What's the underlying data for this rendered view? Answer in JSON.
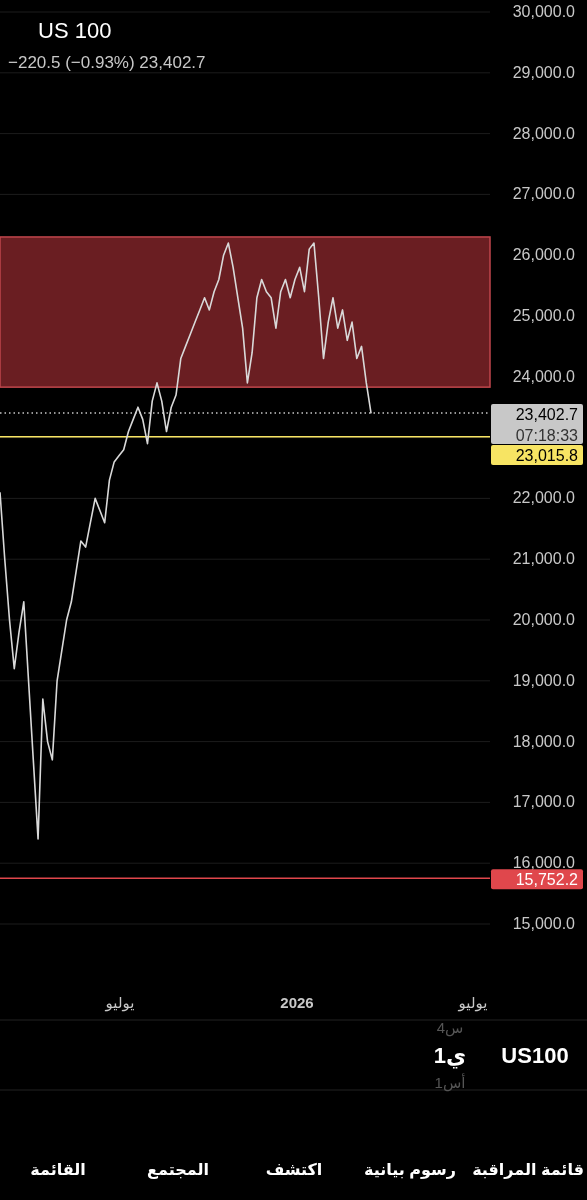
{
  "chart_data": {
    "type": "line",
    "title": "US 100",
    "subtitle": "−220.5 (−0.93%)  23,402.7",
    "categories": [
      null,
      null,
      null,
      null,
      null,
      null,
      null,
      null,
      null,
      null,
      null,
      null,
      null,
      null,
      null,
      null,
      null,
      null,
      null,
      null,
      null,
      null,
      null,
      null,
      null,
      null,
      null,
      null,
      null,
      null,
      null,
      null,
      null,
      null,
      null,
      null,
      null,
      null,
      null,
      null,
      null,
      null,
      null,
      null,
      null,
      null,
      null,
      null,
      null,
      null,
      null,
      null,
      null,
      null,
      null,
      null,
      null,
      null,
      null,
      null,
      null,
      null,
      null,
      null,
      null,
      null,
      null,
      null,
      null,
      null,
      null,
      null,
      null,
      null,
      null,
      null,
      null,
      null,
      null,
      null,
      null,
      null,
      null,
      null,
      null,
      null,
      null,
      null,
      null,
      null,
      null,
      null,
      null,
      null,
      null,
      null,
      null,
      null,
      null,
      null,
      null,
      null,
      null,
      null
    ],
    "series": [
      {
        "color": "#d9d9d9",
        "values": [
          22100,
          21000,
          20000,
          19200,
          19800,
          20300,
          19000,
          17700,
          16400,
          18700,
          18000,
          17700,
          19000,
          19500,
          20000,
          20300,
          20800,
          21300,
          21200,
          21600,
          22000,
          21800,
          21600,
          22300,
          22600,
          22700,
          22800,
          23100,
          23300,
          23500,
          23300,
          22900,
          23600,
          23900,
          23600,
          23100,
          23500,
          23700,
          24300,
          24500,
          24700,
          24900,
          25100,
          25300,
          25100,
          25400,
          25600,
          26000,
          26200,
          25800,
          25300,
          24800,
          23900,
          24400,
          25300,
          25600,
          25400,
          25300,
          24800,
          25400,
          25600,
          25300,
          25600,
          25800,
          25400,
          26100,
          26200,
          25300,
          24300,
          24900,
          25300,
          24800,
          25100,
          24600,
          24900,
          24300,
          24500,
          23900,
          23400,
          null,
          null,
          null,
          null,
          null,
          null,
          null,
          null,
          null,
          null,
          null,
          null,
          null,
          null,
          null,
          null,
          null,
          null,
          null,
          null,
          null,
          null,
          null,
          null,
          null
        ]
      }
    ],
    "ylim": [
      15000,
      30000
    ],
    "yticks": [
      {
        "value": 15000,
        "label": "15,000.0"
      },
      {
        "value": 16000,
        "label": "16,000.0"
      },
      {
        "value": 17000,
        "label": "17,000.0"
      },
      {
        "value": 18000,
        "label": "18,000.0"
      },
      {
        "value": 19000,
        "label": "19,000.0"
      },
      {
        "value": 20000,
        "label": "20,000.0"
      },
      {
        "value": 21000,
        "label": "21,000.0"
      },
      {
        "value": 22000,
        "label": "22,000.0"
      },
      {
        "value": 23000,
        "label": null
      },
      {
        "value": 24000,
        "label": "24,000.0"
      },
      {
        "value": 25000,
        "label": "25,000.0"
      },
      {
        "value": 26000,
        "label": "26,000.0"
      },
      {
        "value": 27000,
        "label": "27,000.0"
      },
      {
        "value": 28000,
        "label": "28,000.0"
      },
      {
        "value": 29000,
        "label": "29,000.0"
      },
      {
        "value": 30000,
        "label": "30,000.0"
      }
    ],
    "grid": "y",
    "bands": [
      {
        "axis": "y",
        "from": 23830,
        "to": 26300,
        "color": "#6a1e22"
      }
    ],
    "ref_lines": [
      {
        "axis": "y",
        "value": 23402.7,
        "label": "23,402.7",
        "color": "#c8c8c8",
        "line_style": "dotted"
      },
      {
        "axis": "y",
        "value": 23015.8,
        "label": "23,015.8",
        "color": "#f7e463",
        "line_style": "solid"
      },
      {
        "axis": "y",
        "value": 15752.2,
        "label": "15,752.2",
        "color": "#e0474c",
        "line_style": "solid"
      }
    ],
    "annotations": [
      "يوليو",
      "2026",
      "يوليو",
      "07:18:33",
      "US100",
      "1ي",
      "4س",
      "1أس",
      "قائمة المراقبة",
      "رسوم بيانية",
      "اكتشف",
      "المجتمع",
      "القائمة"
    ]
  }
}
